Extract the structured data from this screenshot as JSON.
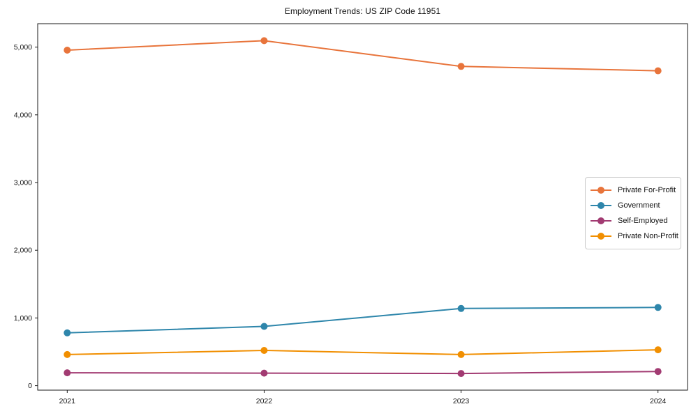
{
  "chart_data": {
    "type": "line",
    "title": "Employment Trends: US ZIP Code 11951",
    "xlabel": "",
    "ylabel": "",
    "x": [
      2021,
      2022,
      2023,
      2024
    ],
    "x_tick_labels": [
      "2021",
      "2022",
      "2023",
      "2024"
    ],
    "y_tick_values": [
      0,
      1000,
      2000,
      3000,
      4000,
      5000
    ],
    "y_tick_labels": [
      "0",
      "1,000",
      "2,000",
      "3,000",
      "4,000",
      "5,000"
    ],
    "xlim": [
      2020.85,
      2024.15
    ],
    "ylim": [
      -66,
      5346
    ],
    "grid": false,
    "legend_position": "center-right",
    "marker": "circle",
    "marker_radius": 5,
    "line_width": 2,
    "axis_color": "#1a1a1a",
    "tick_label_color": "#111111",
    "series": [
      {
        "name": "Private For-Profit",
        "color": "#E8743B",
        "values": [
          4955,
          5095,
          4715,
          4650
        ]
      },
      {
        "name": "Government",
        "color": "#2E86AB",
        "values": [
          780,
          875,
          1140,
          1155
        ]
      },
      {
        "name": "Self-Employed",
        "color": "#A23B72",
        "values": [
          190,
          185,
          180,
          210
        ]
      },
      {
        "name": "Private Non-Profit",
        "color": "#F18F01",
        "values": [
          460,
          520,
          460,
          530
        ]
      }
    ]
  }
}
